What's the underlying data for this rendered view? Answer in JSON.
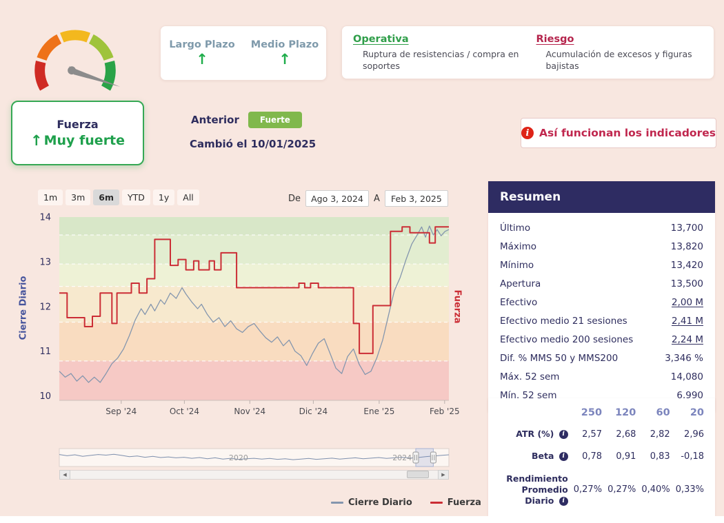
{
  "header": {
    "trends": [
      {
        "label": "Largo Plazo",
        "arrow": "↑"
      },
      {
        "label": "Medio Plazo",
        "arrow": "↑"
      }
    ],
    "operativa_title": "Operativa",
    "operativa_text": "Ruptura de resistencias / compra en soportes",
    "riesgo_title": "Riesgo",
    "riesgo_text": "Acumulación de excesos y figuras bajistas"
  },
  "status": {
    "card_title": "Fuerza",
    "card_arrow": "↑",
    "card_value": "Muy fuerte",
    "anterior_label": "Anterior",
    "anterior_badge": "Fuerte",
    "changed_text": "Cambió el 10/01/2025",
    "help_icon": "i",
    "help_button": "Así funcionan los indicadores"
  },
  "toolbar": {
    "ranges": [
      "1m",
      "3m",
      "6m",
      "YTD",
      "1y",
      "All"
    ],
    "selected_range": "6m",
    "from_label": "De",
    "from_value": "Ago 3, 2024",
    "to_label": "A",
    "to_value": "Feb 3, 2025"
  },
  "chart_data": {
    "type": "line",
    "title": "",
    "ylabel_left": "Cierre Diario",
    "ylabel_right": "Fuerza",
    "ylim": [
      9.9,
      14.0
    ],
    "y_ticks": [
      10,
      11,
      12,
      13,
      14
    ],
    "x_ticks": [
      {
        "pct": 15.9,
        "label": "Sep '24"
      },
      {
        "pct": 32.1,
        "label": "Oct '24"
      },
      {
        "pct": 48.9,
        "label": "Nov '24"
      },
      {
        "pct": 65.2,
        "label": "Dic '24"
      },
      {
        "pct": 82.1,
        "label": "Ene '25"
      },
      {
        "pct": 98.9,
        "label": "Feb '25"
      }
    ],
    "bands": [
      {
        "from": 13.6,
        "to": 14.0,
        "color": "#d8e7c8"
      },
      {
        "from": 12.95,
        "to": 13.6,
        "color": "#e2edd0"
      },
      {
        "from": 12.45,
        "to": 12.95,
        "color": "#eef2d6"
      },
      {
        "from": 11.65,
        "to": 12.45,
        "color": "#f7e9ce"
      },
      {
        "from": 10.78,
        "to": 11.65,
        "color": "#f9dcc0"
      },
      {
        "from": 9.9,
        "to": 10.78,
        "color": "#f6c9c5"
      }
    ],
    "series": [
      {
        "id": "cierre-diario",
        "name": "Cierre Diario",
        "color": "#8496ae",
        "width": 1.3,
        "step": false,
        "points": [
          [
            0,
            10.55
          ],
          [
            1.5,
            10.42
          ],
          [
            3,
            10.5
          ],
          [
            4.5,
            10.33
          ],
          [
            6,
            10.45
          ],
          [
            7.5,
            10.3
          ],
          [
            9,
            10.42
          ],
          [
            10.5,
            10.3
          ],
          [
            12,
            10.5
          ],
          [
            13.5,
            10.72
          ],
          [
            15,
            10.85
          ],
          [
            16.5,
            11.05
          ],
          [
            18,
            11.35
          ],
          [
            19.5,
            11.7
          ],
          [
            21,
            11.95
          ],
          [
            22,
            11.82
          ],
          [
            23.5,
            12.05
          ],
          [
            24.5,
            11.9
          ],
          [
            26,
            12.15
          ],
          [
            27,
            12.05
          ],
          [
            28.5,
            12.3
          ],
          [
            30,
            12.18
          ],
          [
            31.5,
            12.42
          ],
          [
            32.5,
            12.28
          ],
          [
            34,
            12.1
          ],
          [
            35.5,
            11.95
          ],
          [
            36.5,
            12.05
          ],
          [
            38,
            11.82
          ],
          [
            39.5,
            11.65
          ],
          [
            41,
            11.75
          ],
          [
            42.5,
            11.55
          ],
          [
            44,
            11.68
          ],
          [
            45.5,
            11.5
          ],
          [
            47,
            11.42
          ],
          [
            48.5,
            11.55
          ],
          [
            50,
            11.62
          ],
          [
            51.5,
            11.45
          ],
          [
            53,
            11.3
          ],
          [
            54.5,
            11.2
          ],
          [
            56,
            11.32
          ],
          [
            57.5,
            11.12
          ],
          [
            59,
            11.25
          ],
          [
            60.5,
            11.0
          ],
          [
            62,
            10.9
          ],
          [
            63.5,
            10.68
          ],
          [
            65,
            10.95
          ],
          [
            66.5,
            11.18
          ],
          [
            68,
            11.28
          ],
          [
            69.5,
            10.95
          ],
          [
            71,
            10.62
          ],
          [
            72.5,
            10.5
          ],
          [
            74,
            10.88
          ],
          [
            75.5,
            11.05
          ],
          [
            77,
            10.7
          ],
          [
            78.5,
            10.48
          ],
          [
            80,
            10.55
          ],
          [
            81.5,
            10.85
          ],
          [
            83,
            11.25
          ],
          [
            84.5,
            11.8
          ],
          [
            86,
            12.35
          ],
          [
            87.5,
            12.65
          ],
          [
            89,
            13.05
          ],
          [
            90.5,
            13.4
          ],
          [
            92,
            13.62
          ],
          [
            93,
            13.78
          ],
          [
            94,
            13.55
          ],
          [
            95,
            13.8
          ],
          [
            96,
            13.6
          ],
          [
            97,
            13.72
          ],
          [
            98,
            13.58
          ],
          [
            99,
            13.68
          ],
          [
            100,
            13.72
          ]
        ]
      },
      {
        "id": "fuerza",
        "name": "Fuerza",
        "color": "#cb2d35",
        "width": 2,
        "step": true,
        "points": [
          [
            0,
            12.3
          ],
          [
            2,
            12.3
          ],
          [
            2,
            11.75
          ],
          [
            6.5,
            11.75
          ],
          [
            6.5,
            11.55
          ],
          [
            8.5,
            11.55
          ],
          [
            8.5,
            11.78
          ],
          [
            10.5,
            11.78
          ],
          [
            10.5,
            12.3
          ],
          [
            13.5,
            12.3
          ],
          [
            13.5,
            11.62
          ],
          [
            14.8,
            11.62
          ],
          [
            14.8,
            12.3
          ],
          [
            18.5,
            12.3
          ],
          [
            18.5,
            12.52
          ],
          [
            20.5,
            12.52
          ],
          [
            20.5,
            12.3
          ],
          [
            22.5,
            12.3
          ],
          [
            22.5,
            12.62
          ],
          [
            24.5,
            12.62
          ],
          [
            24.5,
            13.5
          ],
          [
            28.5,
            13.5
          ],
          [
            28.5,
            12.92
          ],
          [
            30.5,
            12.92
          ],
          [
            30.5,
            13.05
          ],
          [
            32.5,
            13.05
          ],
          [
            32.5,
            12.82
          ],
          [
            34.5,
            12.82
          ],
          [
            34.5,
            13.02
          ],
          [
            35.8,
            13.02
          ],
          [
            35.8,
            12.82
          ],
          [
            38.5,
            12.82
          ],
          [
            38.5,
            13.02
          ],
          [
            39.8,
            13.02
          ],
          [
            39.8,
            12.82
          ],
          [
            41.5,
            12.82
          ],
          [
            41.5,
            13.2
          ],
          [
            45.5,
            13.2
          ],
          [
            45.5,
            12.42
          ],
          [
            61.5,
            12.42
          ],
          [
            61.5,
            12.52
          ],
          [
            63,
            12.52
          ],
          [
            63,
            12.42
          ],
          [
            64.5,
            12.42
          ],
          [
            64.5,
            12.52
          ],
          [
            66.5,
            12.52
          ],
          [
            66.5,
            12.42
          ],
          [
            75.5,
            12.42
          ],
          [
            75.5,
            11.62
          ],
          [
            77,
            11.62
          ],
          [
            77,
            10.95
          ],
          [
            80.5,
            10.95
          ],
          [
            80.5,
            12.02
          ],
          [
            85,
            12.02
          ],
          [
            85,
            13.68
          ],
          [
            88,
            13.68
          ],
          [
            88,
            13.78
          ],
          [
            90,
            13.78
          ],
          [
            90,
            13.65
          ],
          [
            95,
            13.65
          ],
          [
            95,
            13.42
          ],
          [
            96.5,
            13.42
          ],
          [
            96.5,
            13.78
          ],
          [
            100,
            13.78
          ]
        ]
      }
    ],
    "legend": [
      {
        "label": "Cierre Diario",
        "color": "#8496ae"
      },
      {
        "label": "Fuerza",
        "color": "#cb2d35"
      }
    ],
    "legend_position": "bottom",
    "navigator": {
      "labels": [
        {
          "pct": 46,
          "label": "2020"
        },
        {
          "pct": 88,
          "label": "2024"
        }
      ],
      "window": [
        91.5,
        96
      ],
      "points": [
        [
          0,
          0.3
        ],
        [
          2,
          0.38
        ],
        [
          4,
          0.32
        ],
        [
          6,
          0.42
        ],
        [
          8,
          0.36
        ],
        [
          10,
          0.3
        ],
        [
          12,
          0.34
        ],
        [
          14,
          0.28
        ],
        [
          16,
          0.36
        ],
        [
          18,
          0.44
        ],
        [
          20,
          0.4
        ],
        [
          22,
          0.48
        ],
        [
          24,
          0.42
        ],
        [
          26,
          0.5
        ],
        [
          28,
          0.46
        ],
        [
          30,
          0.52
        ],
        [
          32,
          0.48
        ],
        [
          34,
          0.55
        ],
        [
          36,
          0.5
        ],
        [
          38,
          0.58
        ],
        [
          40,
          0.52
        ],
        [
          42,
          0.6
        ],
        [
          44,
          0.55
        ],
        [
          46,
          0.62
        ],
        [
          48,
          0.58
        ],
        [
          50,
          0.55
        ],
        [
          52,
          0.6
        ],
        [
          54,
          0.56
        ],
        [
          56,
          0.62
        ],
        [
          58,
          0.58
        ],
        [
          60,
          0.64
        ],
        [
          62,
          0.6
        ],
        [
          64,
          0.56
        ],
        [
          66,
          0.62
        ],
        [
          68,
          0.58
        ],
        [
          70,
          0.54
        ],
        [
          72,
          0.6
        ],
        [
          74,
          0.56
        ],
        [
          76,
          0.52
        ],
        [
          78,
          0.58
        ],
        [
          80,
          0.54
        ],
        [
          82,
          0.5
        ],
        [
          84,
          0.56
        ],
        [
          86,
          0.52
        ],
        [
          88,
          0.48
        ],
        [
          90,
          0.54
        ],
        [
          92,
          0.5
        ],
        [
          94,
          0.44
        ],
        [
          96,
          0.4
        ],
        [
          98,
          0.36
        ],
        [
          100,
          0.32
        ]
      ]
    },
    "scrollbar": {
      "left_arrow": "◀",
      "right_arrow": "▶"
    }
  },
  "resumen": {
    "title": "Resumen",
    "rows": [
      {
        "label": "Último",
        "value": "13,700",
        "underline": false
      },
      {
        "label": "Máximo",
        "value": "13,820",
        "underline": false
      },
      {
        "label": "Mínimo",
        "value": "13,420",
        "underline": false
      },
      {
        "label": "Apertura",
        "value": "13,500",
        "underline": false
      },
      {
        "label": "Efectivo",
        "value": "2,00 M",
        "underline": true
      },
      {
        "label": "Efectivo medio 21 sesiones",
        "value": "2,41 M",
        "underline": true
      },
      {
        "label": "Efectivo medio 200 sesiones",
        "value": "2,24 M",
        "underline": true
      },
      {
        "label": "Dif. % MMS 50 y MMS200",
        "value": "3,346 %",
        "underline": false
      },
      {
        "label": "Máx. 52 sem",
        "value": "14,080",
        "underline": false
      },
      {
        "label": "Mín. 52 sem",
        "value": "6,990",
        "underline": false
      }
    ]
  },
  "metrics": {
    "columns": [
      "250",
      "120",
      "60",
      "20"
    ],
    "rows": [
      {
        "label": "ATR (%)",
        "info": true,
        "values": [
          "2,57",
          "2,68",
          "2,82",
          "2,96"
        ]
      },
      {
        "label": "Beta",
        "info": true,
        "values": [
          "0,78",
          "0,91",
          "0,83",
          "-0,18"
        ]
      },
      {
        "label": "Rendimiento Promedio Diario",
        "info": true,
        "values": [
          "0,27%",
          "0,27%",
          "0,40%",
          "0,33%"
        ]
      }
    ]
  }
}
